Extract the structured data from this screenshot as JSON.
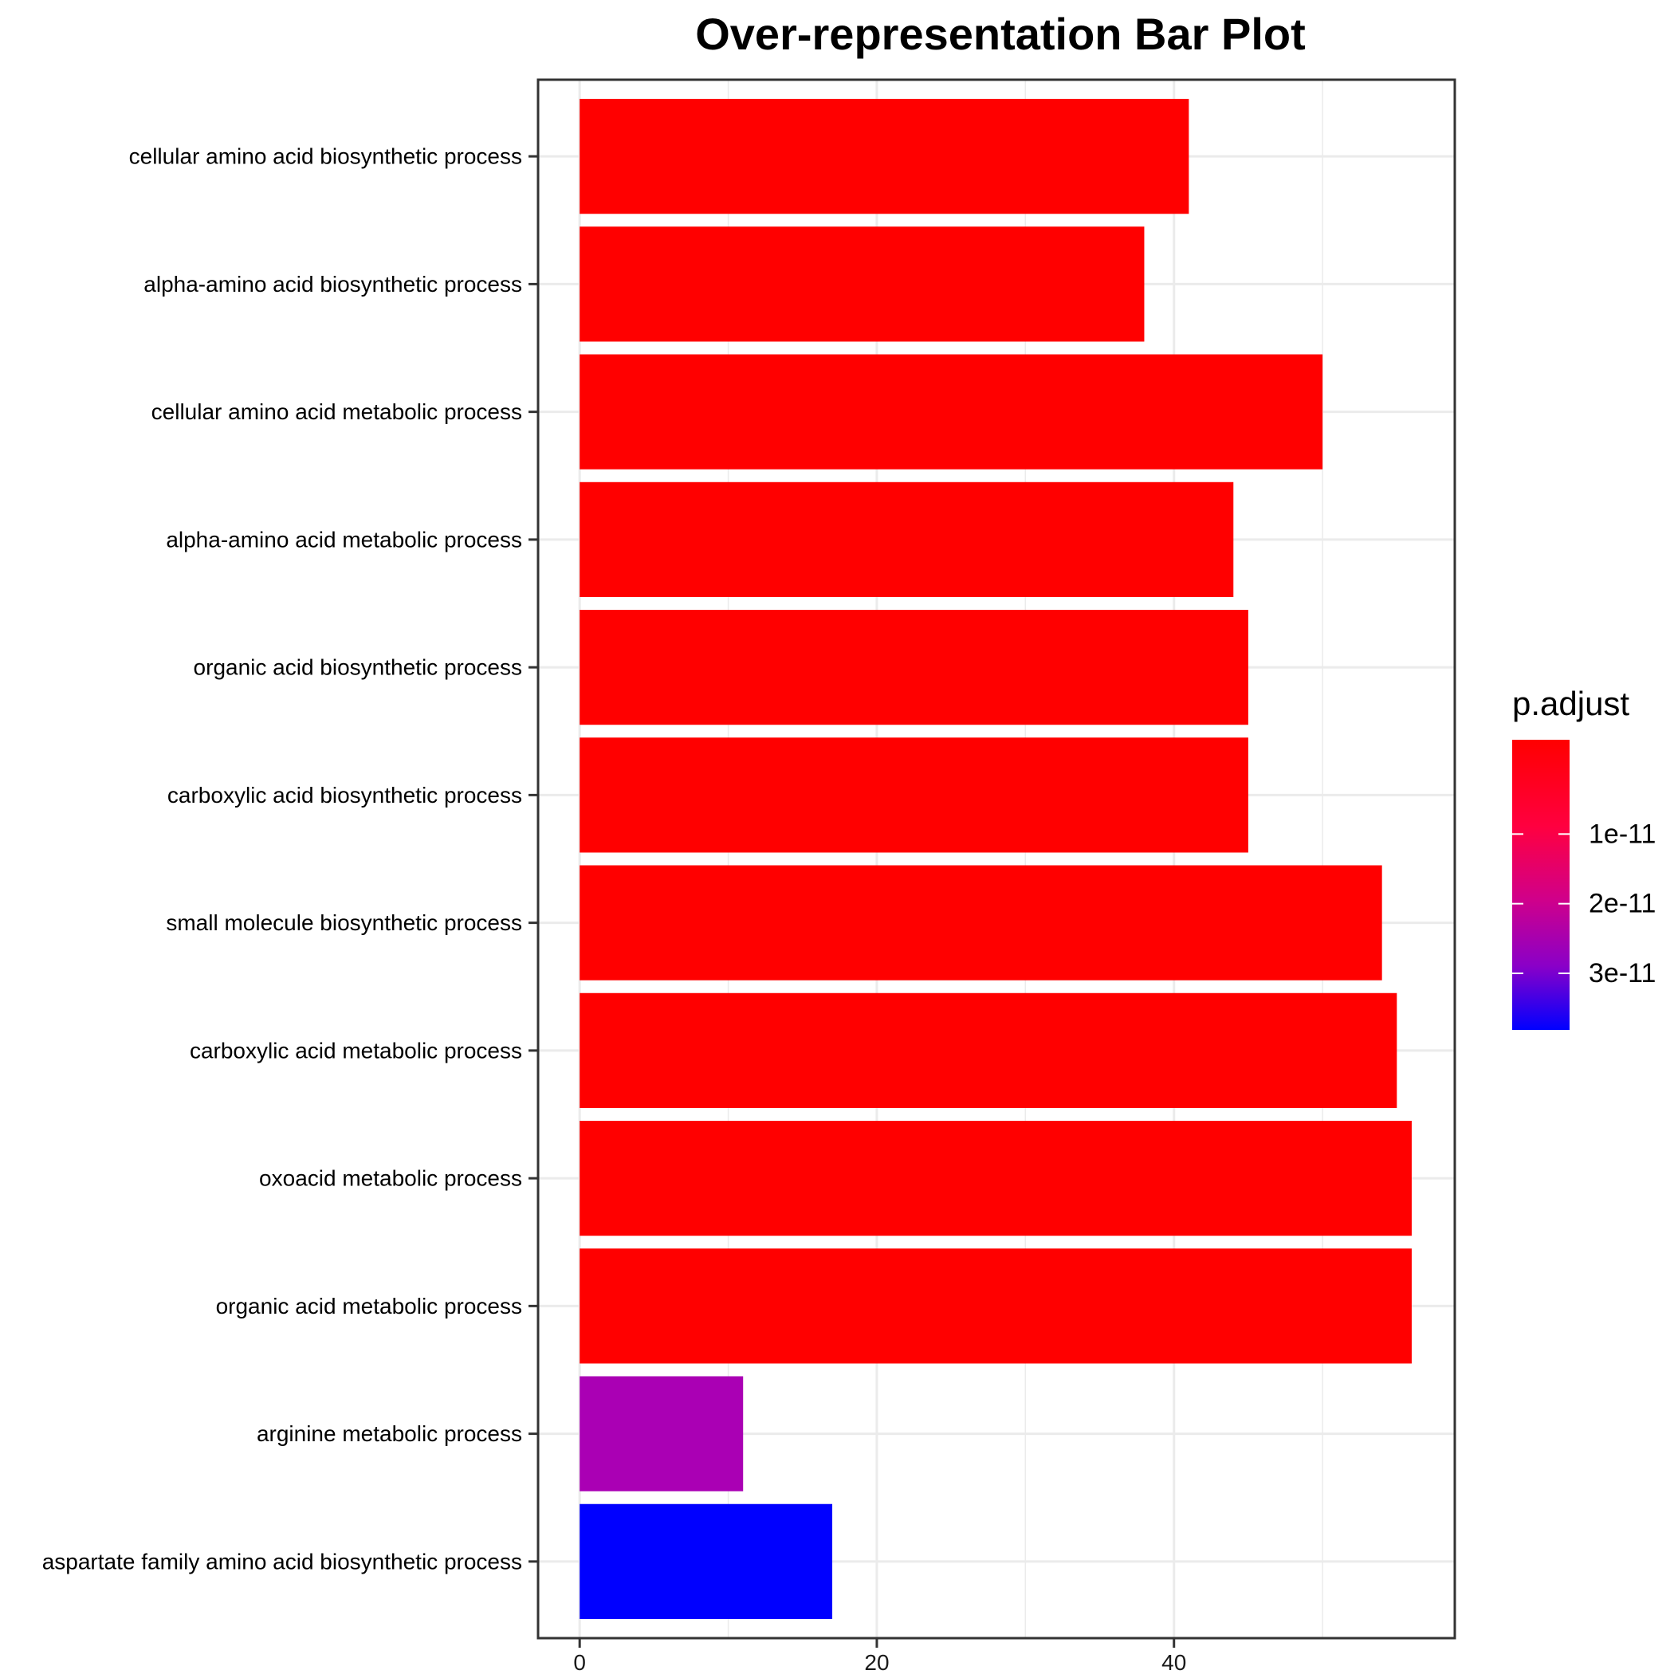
{
  "chart_data": {
    "type": "bar",
    "orientation": "horizontal",
    "title": "Over-representation Bar Plot",
    "xlabel": "",
    "ylabel": "",
    "xlim": [
      -2.8,
      58.9
    ],
    "x_ticks": [
      0,
      20,
      40
    ],
    "grid": true,
    "categories": [
      "cellular amino acid biosynthetic process",
      "alpha-amino acid biosynthetic process",
      "cellular amino acid metabolic process",
      "alpha-amino acid metabolic process",
      "organic acid biosynthetic process",
      "carboxylic acid biosynthetic process",
      "small molecule biosynthetic process",
      "carboxylic acid metabolic process",
      "oxoacid metabolic process",
      "organic acid metabolic process",
      "arginine metabolic process",
      "aspartate family amino acid biosynthetic process"
    ],
    "values": [
      41,
      38,
      50,
      44,
      45,
      45,
      54,
      55,
      56,
      56,
      11,
      17
    ],
    "colors": [
      "#ff0000",
      "#ff0000",
      "#ff0000",
      "#ff0000",
      "#ff0000",
      "#ff0000",
      "#ff0000",
      "#ff0000",
      "#ff0000",
      "#ff0000",
      "#aa00b4",
      "#0000ff"
    ],
    "legend": {
      "title": "p.adjust",
      "placement": "right",
      "color_low": "#ff0000",
      "color_high": "#0000ff",
      "ticks": [
        "1e-11",
        "2e-11",
        "3e-11"
      ]
    }
  }
}
